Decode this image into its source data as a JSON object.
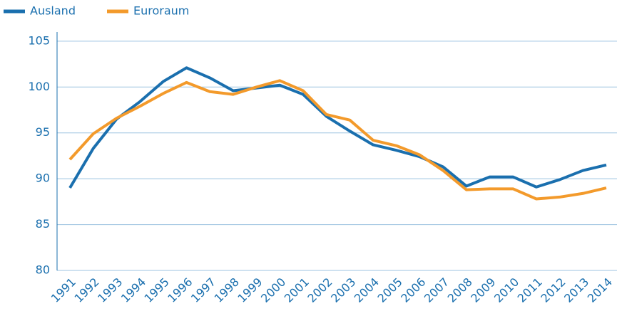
{
  "chart_data": {
    "type": "line",
    "categories": [
      "1991",
      "1992",
      "1993",
      "1994",
      "1995",
      "1996",
      "1997",
      "1998",
      "1999",
      "2000",
      "2001",
      "2002",
      "2003",
      "2004",
      "2005",
      "2006",
      "2007",
      "2008",
      "2009",
      "2010",
      "2011",
      "2012",
      "2013",
      "2014"
    ],
    "series": [
      {
        "name": "Ausland",
        "color": "#1a6fae",
        "values": [
          89.0,
          93.3,
          96.5,
          98.4,
          100.6,
          102.1,
          101.0,
          99.6,
          99.9,
          100.2,
          99.2,
          96.8,
          95.2,
          93.7,
          93.1,
          92.4,
          91.3,
          89.2,
          90.2,
          90.2,
          89.1,
          89.9,
          90.9,
          91.5
        ]
      },
      {
        "name": "Euroraum",
        "color": "#f39a2b",
        "values": [
          92.1,
          94.9,
          96.6,
          97.9,
          99.3,
          100.5,
          99.5,
          99.2,
          100.0,
          100.7,
          99.6,
          97.0,
          96.4,
          94.2,
          93.6,
          92.6,
          90.9,
          88.8,
          88.9,
          88.9,
          87.8,
          88.0,
          88.4,
          89.0
        ]
      }
    ],
    "ylim": [
      80,
      106
    ],
    "yticks": [
      80,
      85,
      90,
      95,
      100,
      105
    ],
    "grid": true,
    "legend": "top-left"
  }
}
